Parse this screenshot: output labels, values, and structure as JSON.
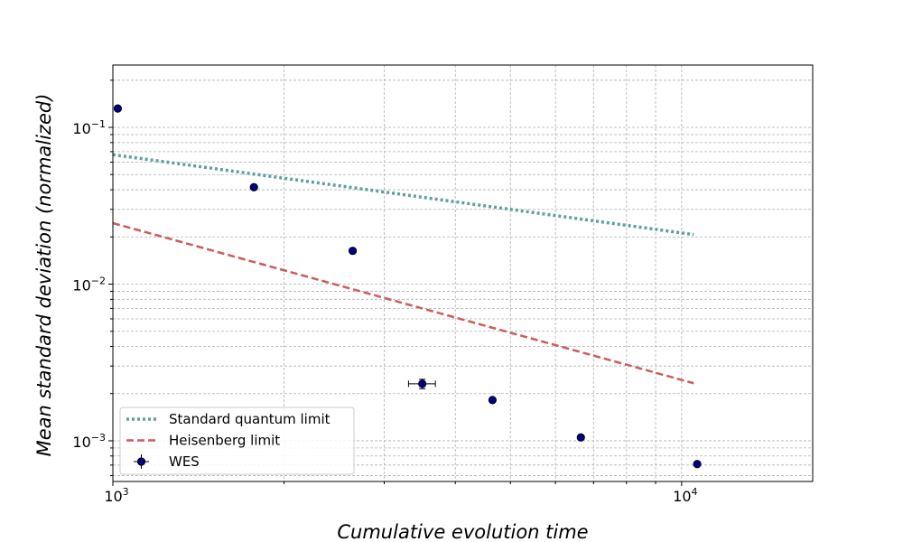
{
  "chart_data": {
    "type": "scatter",
    "title": "",
    "xlabel": "Cumulative evolution time",
    "ylabel": "Mean standard deviation (normalized)",
    "xscale": "log",
    "yscale": "log",
    "xlim": [
      1000,
      17000
    ],
    "ylim": [
      0.00055,
      0.25
    ],
    "grid": true,
    "legend_position": "lower-left",
    "x_ticks": [
      {
        "value": 1000,
        "base": "10",
        "exp": "3"
      },
      {
        "value": 10000,
        "base": "10",
        "exp": "4"
      }
    ],
    "y_ticks": [
      {
        "value": 0.1,
        "base": "10",
        "exp": "−1"
      },
      {
        "value": 0.01,
        "base": "10",
        "exp": "−2"
      },
      {
        "value": 0.001,
        "base": "10",
        "exp": "−3"
      }
    ],
    "series": [
      {
        "name": "Standard quantum limit",
        "kind": "line",
        "style": "dotted",
        "color": "#5f9ea0",
        "x": [
          1000,
          10500
        ],
        "y": [
          0.067,
          0.0207
        ]
      },
      {
        "name": "Heisenberg limit",
        "kind": "line",
        "style": "dashed",
        "color": "#cd5c5c",
        "x": [
          1000,
          10500
        ],
        "y": [
          0.0245,
          0.00233
        ]
      },
      {
        "name": "WES",
        "kind": "errorbar",
        "color": "#000080",
        "points": [
          {
            "x": 1020,
            "y": 0.132,
            "xerr": 0,
            "yerr": 0
          },
          {
            "x": 1770,
            "y": 0.0415,
            "xerr": 0,
            "yerr": 0
          },
          {
            "x": 2640,
            "y": 0.0163,
            "xerr": 0,
            "yerr": 0
          },
          {
            "x": 3500,
            "y": 0.00231,
            "xerr": 190,
            "yerr": 0.00016
          },
          {
            "x": 4650,
            "y": 0.00182,
            "xerr": 0,
            "yerr": 0
          },
          {
            "x": 6650,
            "y": 0.00105,
            "xerr": 0,
            "yerr": 0
          },
          {
            "x": 10650,
            "y": 0.00071,
            "xerr": 0,
            "yerr": 0
          }
        ]
      }
    ]
  }
}
